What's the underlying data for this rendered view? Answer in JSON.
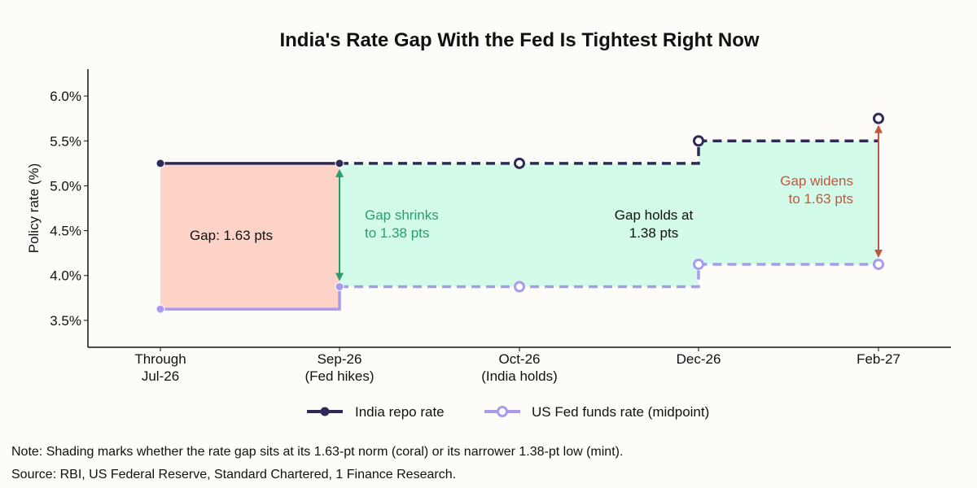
{
  "chart_data": {
    "type": "line",
    "title": "India's Rate Gap With the Fed Is Tightest Right Now",
    "ylabel": "Policy rate (%)",
    "xlabel": "",
    "ylim": [
      3.2,
      6.3
    ],
    "yticks": [
      "3.5%",
      "4.0%",
      "4.5%",
      "5.0%",
      "5.5%",
      "6.0%"
    ],
    "ytick_values": [
      3.5,
      4.0,
      4.5,
      5.0,
      5.5,
      6.0
    ],
    "categories": [
      [
        "Through",
        "Jul-26"
      ],
      [
        "Sep-26",
        "(Fed hikes)"
      ],
      [
        "Oct-26",
        "(India holds)"
      ],
      [
        "Dec-26"
      ],
      [
        "Feb-27"
      ]
    ],
    "series": [
      {
        "name": "India repo rate",
        "values": [
          5.25,
          5.25,
          5.25,
          5.5,
          5.75
        ],
        "color": "#2d2a5a"
      },
      {
        "name": "US Fed funds rate (midpoint)",
        "values": [
          3.625,
          3.875,
          3.875,
          4.125,
          4.125
        ],
        "color": "#a89bef"
      }
    ],
    "shading": [
      {
        "from": 0,
        "to": 1,
        "color": "#fdd3c8"
      },
      {
        "from": 1,
        "to": 4,
        "color": "#d2fbe9"
      }
    ],
    "annotations": {
      "gap_initial": "Gap: 1.63 pts",
      "gap_shrinks": [
        "Gap shrinks",
        "to 1.38 pts"
      ],
      "gap_holds": [
        "Gap holds at",
        "1.38 pts"
      ],
      "gap_widens": [
        "Gap widens",
        "to 1.63 pts"
      ]
    },
    "colors": {
      "coral": "#c0563b",
      "mint_arrow": "#2a9d6a"
    },
    "legend_position": "bottom-center",
    "grid": false
  },
  "note": "Note: Shading marks whether the rate gap sits at its 1.63-pt norm (coral) or its narrower 1.38-pt low (mint).",
  "source": "Source: RBI, US Federal Reserve, Standard Chartered, 1 Finance Research."
}
